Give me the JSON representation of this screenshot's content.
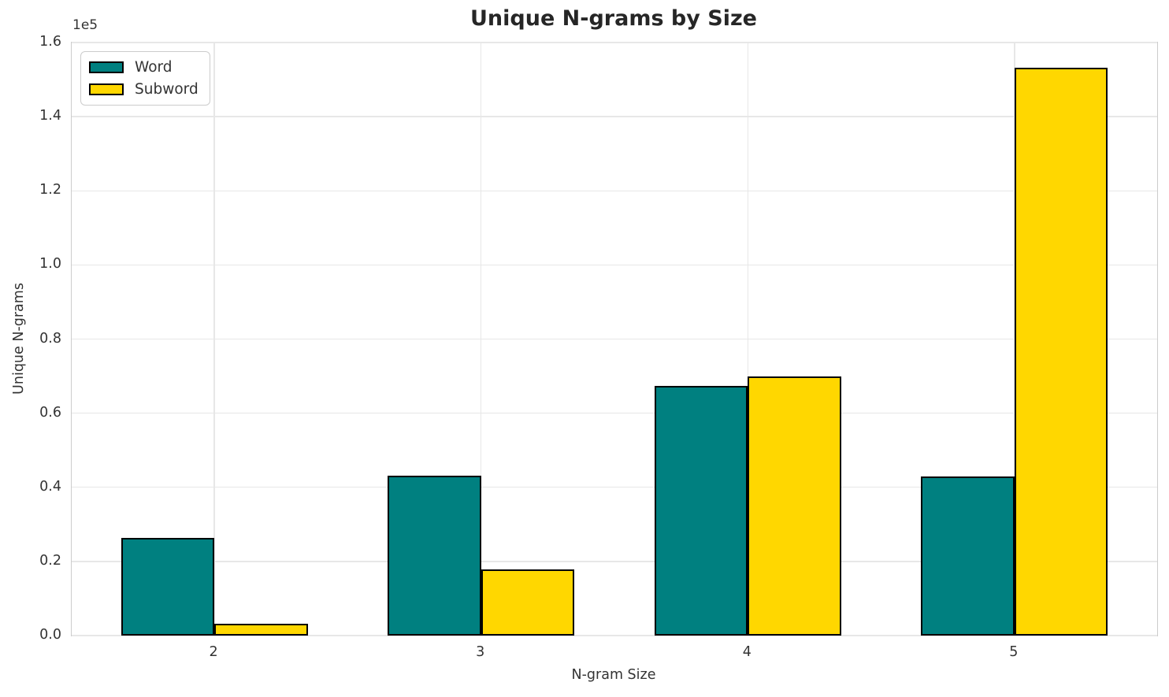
{
  "title": "Unique N-grams by Size",
  "chart_data": {
    "type": "bar",
    "categories": [
      "2",
      "3",
      "4",
      "5"
    ],
    "series": [
      {
        "name": "Word",
        "color": "#008080",
        "values": [
          26300,
          43200,
          67300,
          43000
        ]
      },
      {
        "name": "Subword",
        "color": "#FFD700",
        "values": [
          3200,
          17900,
          69900,
          153300
        ]
      }
    ],
    "bar_edge_color": "#000000",
    "bar_width_fraction": 0.35,
    "title": "Unique N-grams by Size",
    "xlabel": "N-gram Size",
    "ylabel": "Unique N-grams",
    "ylim": [
      0,
      160000
    ],
    "ytick_values": [
      0,
      20000,
      40000,
      60000,
      80000,
      100000,
      120000,
      140000,
      160000
    ],
    "ytick_labels": [
      "0.0",
      "0.2",
      "0.4",
      "0.6",
      "0.8",
      "1.0",
      "1.2",
      "1.4",
      "1.6"
    ],
    "y_offset_label": "1e5",
    "grid": true,
    "legend_position": "upper left",
    "legend_labels": [
      "Word",
      "Subword"
    ]
  },
  "colors": {
    "background": "#ffffff",
    "grid": "#e7e7e7",
    "spine": "#cccccc",
    "tick_text": "#333333",
    "title_text": "#262626",
    "word_bar": "#008080",
    "subword_bar": "#FFD700"
  }
}
